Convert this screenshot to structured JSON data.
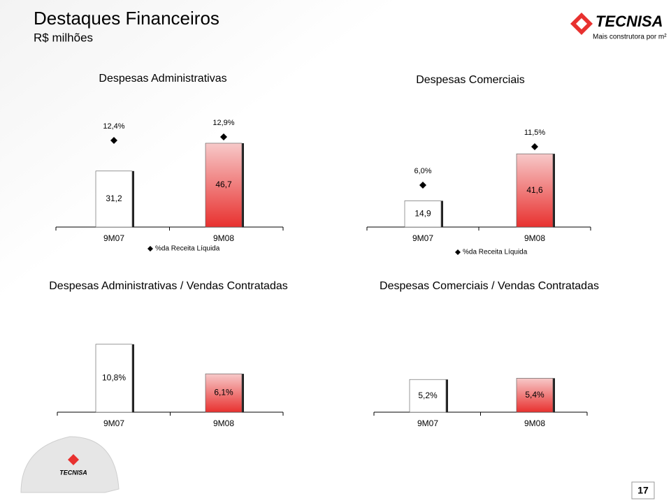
{
  "header": {
    "title": "Destaques Financeiros",
    "subtitle": "R$ milhões",
    "logo": "TECNISA",
    "tagline": "Mais construtora por m²"
  },
  "footer": {
    "page": "17",
    "helmet_logo": "TECNISA"
  },
  "chart_data": [
    {
      "type": "bar",
      "title": "Despesas Administrativas",
      "categories": [
        "9M07",
        "9M08"
      ],
      "values": [
        31.2,
        46.7
      ],
      "value_labels": [
        "31,2",
        "46,7"
      ],
      "bar_colors": [
        "#ffffff",
        "#e8312f"
      ],
      "markers": {
        "name": "%da Receita Líquida",
        "color": "#000000",
        "values": [
          12.4,
          12.9
        ],
        "value_labels": [
          "12,4%",
          "12,9%"
        ]
      }
    },
    {
      "type": "bar",
      "title": "Despesas Comerciais",
      "categories": [
        "9M07",
        "9M08"
      ],
      "values": [
        14.9,
        41.6
      ],
      "value_labels": [
        "14,9",
        "41,6"
      ],
      "bar_colors": [
        "#ffffff",
        "#e8312f"
      ],
      "markers": {
        "name": "%da Receita Líquida",
        "color": "#000000",
        "values": [
          6.0,
          11.5
        ],
        "value_labels": [
          "6,0%",
          "11,5%"
        ]
      }
    },
    {
      "type": "bar",
      "title": "Despesas Administrativas / Vendas Contratadas",
      "categories": [
        "9M07",
        "9M08"
      ],
      "values": [
        10.8,
        6.1
      ],
      "value_labels": [
        "10,8%",
        "6,1%"
      ],
      "bar_colors": [
        "#ffffff",
        "#e8312f"
      ]
    },
    {
      "type": "bar",
      "title": "Despesas Comerciais / Vendas Contratadas",
      "categories": [
        "9M07",
        "9M08"
      ],
      "values": [
        5.2,
        5.4
      ],
      "value_labels": [
        "5,2%",
        "5,4%"
      ],
      "bar_colors": [
        "#ffffff",
        "#e8312f"
      ]
    }
  ]
}
